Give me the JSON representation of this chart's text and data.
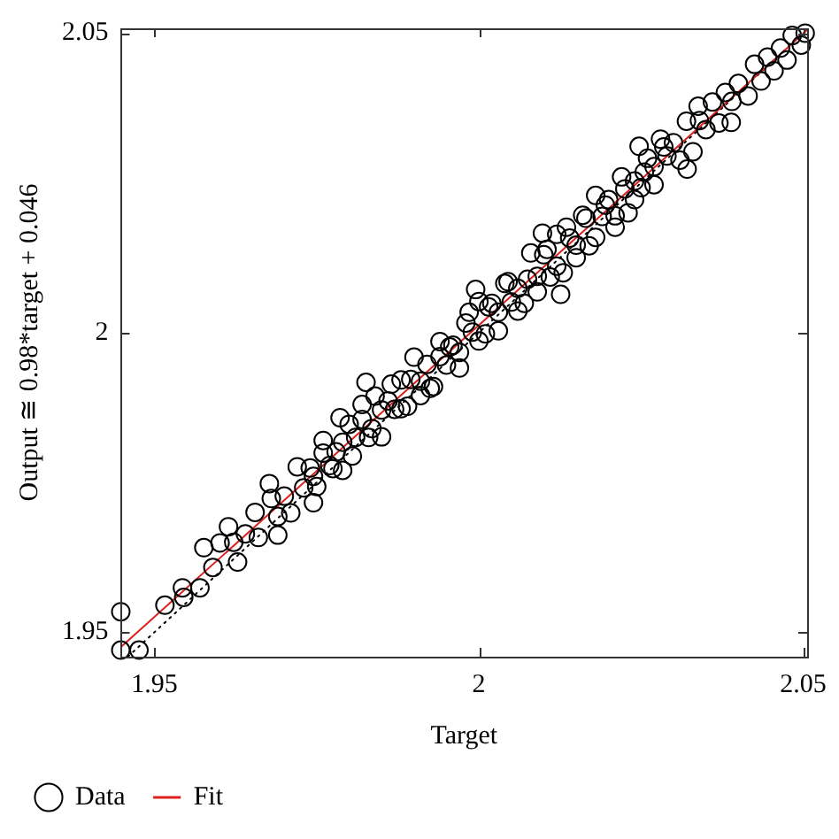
{
  "chart_data": {
    "type": "scatter",
    "xlabel": "Target",
    "ylabel": "Output ≅ 0.98*target + 0.046",
    "xlim": [
      1.9448,
      2.0506
    ],
    "ylim": [
      1.9459,
      2.0508
    ],
    "xticks": [
      1.95,
      2,
      2.05
    ],
    "yticks": [
      1.95,
      2,
      2.05
    ],
    "legend": "bottom left",
    "marker": "circle",
    "series": [
      {
        "name": "Data",
        "color": "#000000",
        "x": [
          1.9448,
          1.9448,
          1.9476,
          1.9516,
          1.9545,
          1.9543,
          1.957,
          1.9576,
          1.9601,
          1.9614,
          1.9628,
          1.959,
          1.9622,
          1.964,
          1.9655,
          1.966,
          1.969,
          1.9677,
          1.9745,
          1.9786,
          1.9826,
          1.9995,
          2.0098,
          2.0126,
          2.0247,
          2.0321,
          2.0338,
          2.0389,
          1.968,
          1.969,
          1.97,
          1.971,
          1.972,
          1.973,
          1.974,
          1.975,
          1.976,
          1.977,
          1.978,
          1.979,
          1.98,
          1.981,
          1.982,
          1.983,
          1.984,
          1.985,
          1.986,
          1.987,
          1.988,
          1.989,
          1.99,
          1.991,
          1.992,
          1.993,
          1.994,
          1.995,
          1.996,
          1.997,
          1.998,
          1.999,
          2.0,
          2.001,
          2.002,
          2.003,
          2.004,
          2.005,
          2.006,
          2.007,
          2.008,
          2.009,
          2.01,
          2.011,
          2.012,
          2.013,
          2.014,
          2.015,
          2.016,
          2.017,
          2.018,
          2.019,
          2.02,
          2.021,
          2.022,
          2.023,
          2.024,
          2.025,
          2.026,
          2.027,
          2.028,
          2.029,
          2.03,
          2.031,
          2.032,
          2.033,
          2.034,
          2.035,
          2.036,
          2.037,
          2.038,
          2.039,
          2.04,
          1.9745,
          1.976,
          1.9775,
          1.979,
          1.9805,
          1.982,
          1.9835,
          1.985,
          1.9865,
          1.988,
          1.9895,
          1.991,
          1.9925,
          1.994,
          1.9955,
          1.997,
          1.9985,
          2.0,
          2.0015,
          2.003,
          2.0045,
          2.006,
          2.0075,
          2.009,
          2.0105,
          2.012,
          2.0135,
          2.015,
          2.0165,
          2.018,
          2.0195,
          2.021,
          2.0225,
          2.024,
          2.0255,
          2.027,
          2.0285,
          2.0415,
          2.0425,
          2.0435,
          2.0445,
          2.0455,
          2.0465,
          2.0475,
          2.0483,
          2.0497,
          2.0503
        ],
        "values": [
          1.9534,
          1.947,
          1.947,
          1.9545,
          1.9558,
          1.9574,
          1.9574,
          1.9641,
          1.9649,
          1.9676,
          1.9617,
          1.9608,
          1.965,
          1.9664,
          1.97,
          1.9658,
          1.9662,
          1.9748,
          1.9716,
          1.9858,
          1.9917,
          2.0072,
          2.0166,
          2.0064,
          2.0311,
          2.0273,
          2.0378,
          2.0351,
          1.9723,
          1.9693,
          1.9727,
          1.9699,
          1.9776,
          1.9741,
          1.9774,
          1.9743,
          1.982,
          1.9778,
          1.9801,
          1.977,
          1.9847,
          1.9825,
          1.9855,
          1.9825,
          1.9894,
          1.9826,
          1.9886,
          1.9872,
          1.9921,
          1.9877,
          1.9959,
          1.9919,
          1.9947,
          1.991,
          1.9985,
          1.9946,
          1.9979,
          1.9941,
          2.0016,
          2.0001,
          2.0052,
          1.9998,
          2.0049,
          2.0003,
          2.0082,
          2.0051,
          2.0074,
          2.0049,
          2.0133,
          2.0094,
          2.013,
          2.0093,
          2.0164,
          2.01,
          2.0158,
          2.0146,
          2.0196,
          2.0145,
          2.0229,
          2.0194,
          2.0222,
          2.0195,
          2.026,
          2.02,
          2.0253,
          2.0242,
          2.0291,
          2.0247,
          2.0323,
          2.0295,
          2.0317,
          2.0288,
          2.0353,
          2.0302,
          2.0354,
          2.0339,
          2.0385,
          2.035,
          2.0401,
          2.0386,
          2.0416,
          1.976,
          1.9799,
          1.9773,
          1.9817,
          1.9794,
          1.988,
          1.984,
          1.9871,
          1.9914,
          1.9873,
          1.9922,
          1.9895,
          1.9907,
          1.996,
          1.9976,
          1.9967,
          2.0034,
          1.9986,
          2.0043,
          2.0034,
          2.0085,
          2.0036,
          2.0089,
          2.0068,
          2.0139,
          2.0111,
          2.0176,
          2.0125,
          2.0191,
          2.0159,
          2.0213,
          2.0176,
          2.024,
          2.0222,
          2.0268,
          2.0277,
          2.031,
          2.0395,
          2.0448,
          2.042,
          2.046,
          2.0437,
          2.0475,
          2.0455,
          2.0496,
          2.048,
          2.05
        ]
      },
      {
        "name": "Fit",
        "type": "line",
        "color": "#e0201e",
        "marker": "none",
        "line_style": "solid",
        "x": [
          1.9448,
          2.0506
        ],
        "values": [
          1.9475,
          2.0505
        ]
      },
      {
        "type": "line",
        "color": "#000000",
        "marker": "none",
        "line_style": "dotted",
        "x": [
          1.9459,
          2.0506
        ],
        "values": [
          1.9459,
          2.0506
        ]
      }
    ]
  }
}
